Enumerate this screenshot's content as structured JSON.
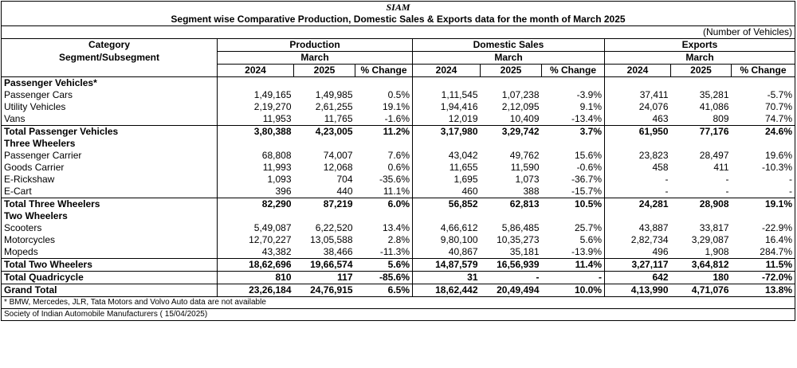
{
  "header": {
    "siam": "SIAM",
    "title": "Segment wise Comparative Production, Domestic Sales & Exports data for the month of March 2025",
    "unit": "(Number of Vehicles)"
  },
  "columns": {
    "category": "Category",
    "segment": "Segment/Subsegment",
    "production": "Production",
    "domestic": "Domestic Sales",
    "exports": "Exports",
    "month": "March",
    "y1": "2024",
    "y2": "2025",
    "change": "% Change"
  },
  "rows": [
    {
      "type": "section",
      "label": "Passenger Vehicles*"
    },
    {
      "type": "data",
      "label": "Passenger Cars",
      "v": [
        "1,49,165",
        "1,49,985",
        "0.5%",
        "1,11,545",
        "1,07,238",
        "-3.9%",
        "37,411",
        "35,281",
        "-5.7%"
      ]
    },
    {
      "type": "data",
      "label": "Utility Vehicles",
      "v": [
        "2,19,270",
        "2,61,255",
        "19.1%",
        "1,94,416",
        "2,12,095",
        "9.1%",
        "24,076",
        "41,086",
        "70.7%"
      ]
    },
    {
      "type": "data",
      "label": "Vans",
      "v": [
        "11,953",
        "11,765",
        "-1.6%",
        "12,019",
        "10,409",
        "-13.4%",
        "463",
        "809",
        "74.7%"
      ]
    },
    {
      "type": "total",
      "label": "Total Passenger Vehicles",
      "v": [
        "3,80,388",
        "4,23,005",
        "11.2%",
        "3,17,980",
        "3,29,742",
        "3.7%",
        "61,950",
        "77,176",
        "24.6%"
      ]
    },
    {
      "type": "section",
      "label": "Three Wheelers"
    },
    {
      "type": "data",
      "label": "Passenger Carrier",
      "v": [
        "68,808",
        "74,007",
        "7.6%",
        "43,042",
        "49,762",
        "15.6%",
        "23,823",
        "28,497",
        "19.6%"
      ]
    },
    {
      "type": "data",
      "label": "Goods Carrier",
      "v": [
        "11,993",
        "12,068",
        "0.6%",
        "11,655",
        "11,590",
        "-0.6%",
        "458",
        "411",
        "-10.3%"
      ]
    },
    {
      "type": "data",
      "label": "E-Rickshaw",
      "v": [
        "1,093",
        "704",
        "-35.6%",
        "1,695",
        "1,073",
        "-36.7%",
        "-",
        "-",
        "-"
      ]
    },
    {
      "type": "data",
      "label": "E-Cart",
      "v": [
        "396",
        "440",
        "11.1%",
        "460",
        "388",
        "-15.7%",
        "-",
        "-",
        "-"
      ]
    },
    {
      "type": "total",
      "label": "Total Three Wheelers",
      "v": [
        "82,290",
        "87,219",
        "6.0%",
        "56,852",
        "62,813",
        "10.5%",
        "24,281",
        "28,908",
        "19.1%"
      ]
    },
    {
      "type": "section",
      "label": "Two Wheelers"
    },
    {
      "type": "data",
      "label": "Scooters",
      "v": [
        "5,49,087",
        "6,22,520",
        "13.4%",
        "4,66,612",
        "5,86,485",
        "25.7%",
        "43,887",
        "33,817",
        "-22.9%"
      ]
    },
    {
      "type": "data",
      "label": "Motorcycles",
      "v": [
        "12,70,227",
        "13,05,588",
        "2.8%",
        "9,80,100",
        "10,35,273",
        "5.6%",
        "2,82,734",
        "3,29,087",
        "16.4%"
      ]
    },
    {
      "type": "data",
      "label": "Mopeds",
      "v": [
        "43,382",
        "38,466",
        "-11.3%",
        "40,867",
        "35,181",
        "-13.9%",
        "496",
        "1,908",
        "284.7%"
      ]
    },
    {
      "type": "total",
      "label": "Total Two Wheelers",
      "v": [
        "18,62,696",
        "19,66,574",
        "5.6%",
        "14,87,579",
        "16,56,939",
        "11.4%",
        "3,27,117",
        "3,64,812",
        "11.5%"
      ]
    },
    {
      "type": "total",
      "label": "Total Quadricycle",
      "v": [
        "810",
        "117",
        "-85.6%",
        "31",
        "-",
        "-",
        "642",
        "180",
        "-72.0%"
      ]
    },
    {
      "type": "total",
      "label": "Grand Total",
      "v": [
        "23,26,184",
        "24,76,915",
        "6.5%",
        "18,62,442",
        "20,49,494",
        "10.0%",
        "4,13,990",
        "4,71,076",
        "13.8%"
      ]
    }
  ],
  "footer": {
    "note": "* BMW, Mercedes, JLR, Tata Motors and Volvo Auto data are not available",
    "source": "Society of Indian Automobile Manufacturers ( 15/04/2025)"
  }
}
